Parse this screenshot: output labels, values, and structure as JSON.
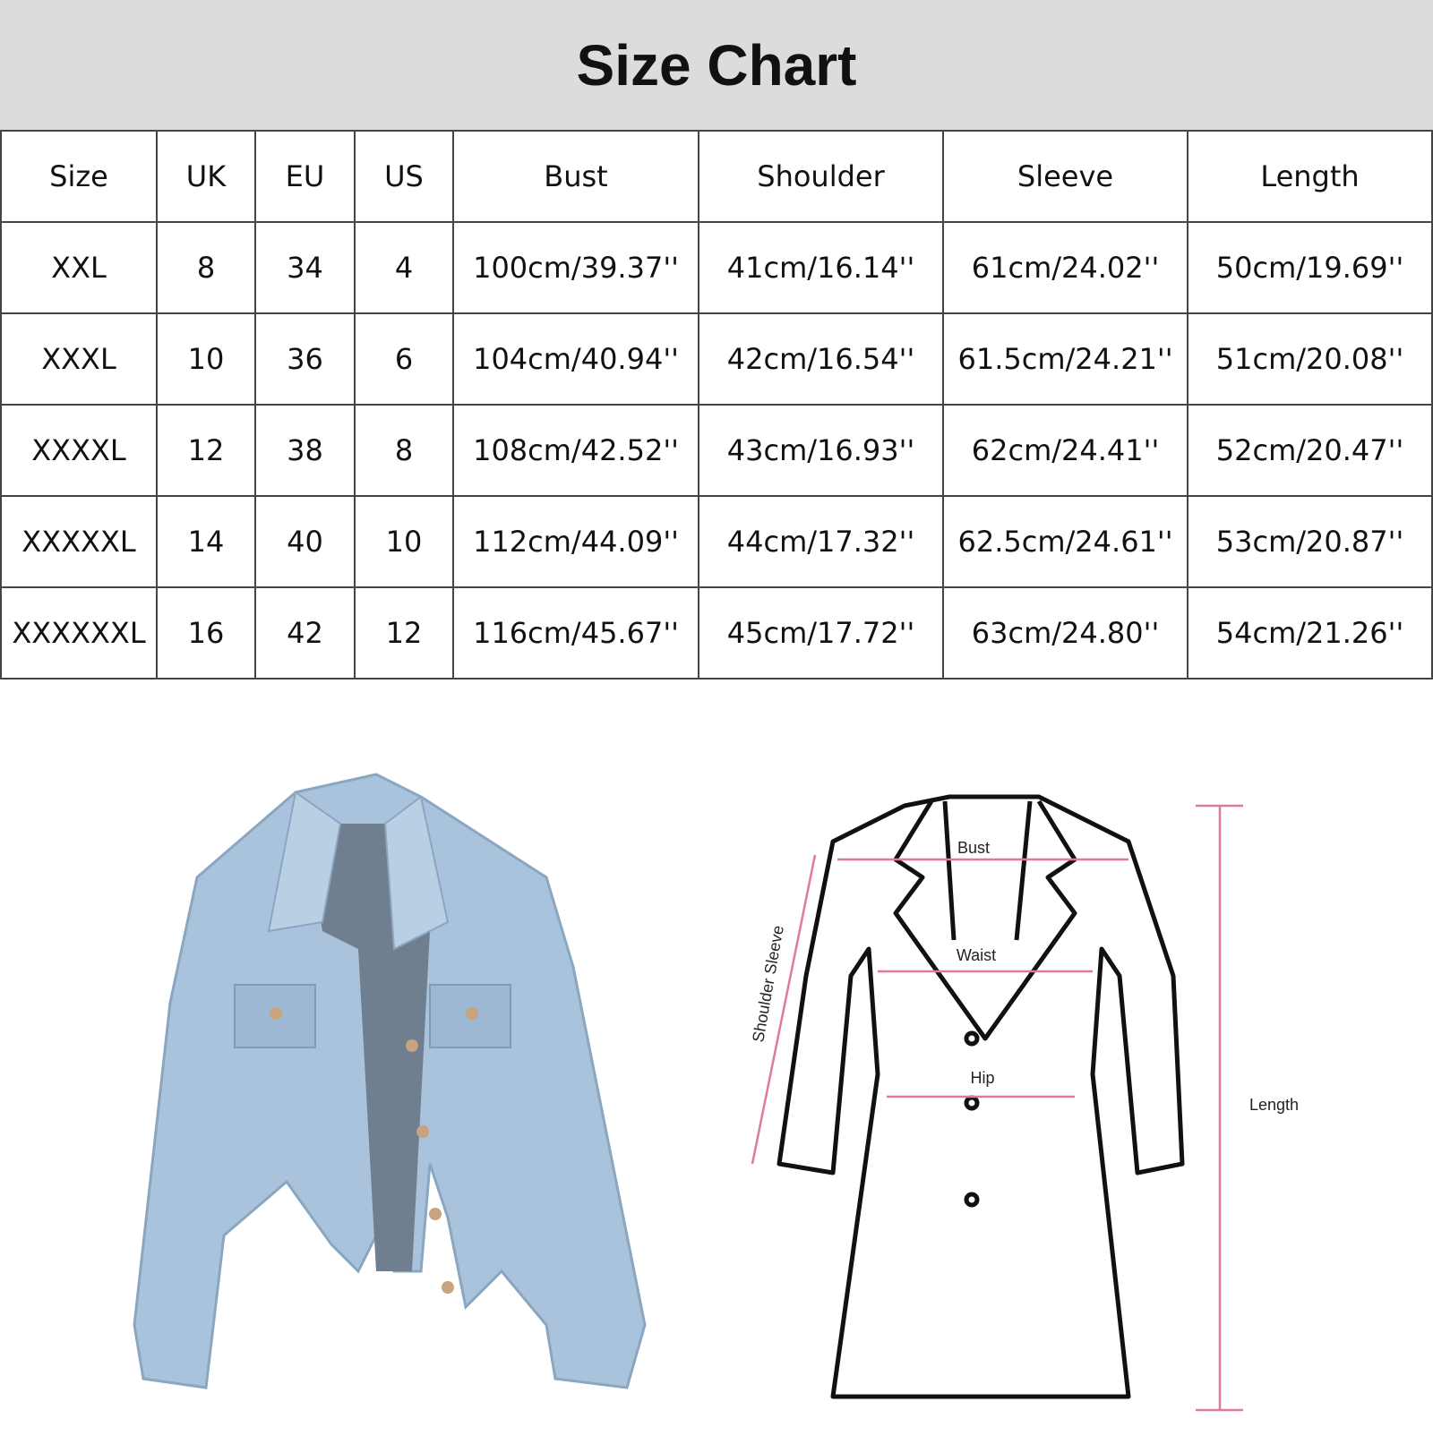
{
  "title": "Size Chart",
  "table": {
    "headers": [
      "Size",
      "UK",
      "EU",
      "US",
      "Bust",
      "Shoulder",
      "Sleeve",
      "Length"
    ],
    "rows": [
      [
        "XXL",
        "8",
        "34",
        "4",
        "100cm/39.37''",
        "41cm/16.14''",
        "61cm/24.02''",
        "50cm/19.69''"
      ],
      [
        "XXXL",
        "10",
        "36",
        "6",
        "104cm/40.94''",
        "42cm/16.54''",
        "61.5cm/24.21''",
        "51cm/20.08''"
      ],
      [
        "XXXXL",
        "12",
        "38",
        "8",
        "108cm/42.52''",
        "43cm/16.93''",
        "62cm/24.41''",
        "52cm/20.47''"
      ],
      [
        "XXXXXL",
        "14",
        "40",
        "10",
        "112cm/44.09''",
        "44cm/17.32''",
        "62.5cm/24.61''",
        "53cm/20.87''"
      ],
      [
        "XXXXXXL",
        "16",
        "42",
        "12",
        "116cm/45.67''",
        "45cm/17.72''",
        "63cm/24.80''",
        "54cm/21.26''"
      ]
    ]
  },
  "diagram": {
    "labels": {
      "bust": "Bust",
      "waist": "Waist",
      "hip": "Hip",
      "shoulder_sleeve": "Shoulder Sleeve",
      "length": "Length"
    },
    "measure_color": "#e07a9a"
  },
  "colors": {
    "header_bg": "#dcdcdc",
    "denim": "#a9c3dc"
  }
}
